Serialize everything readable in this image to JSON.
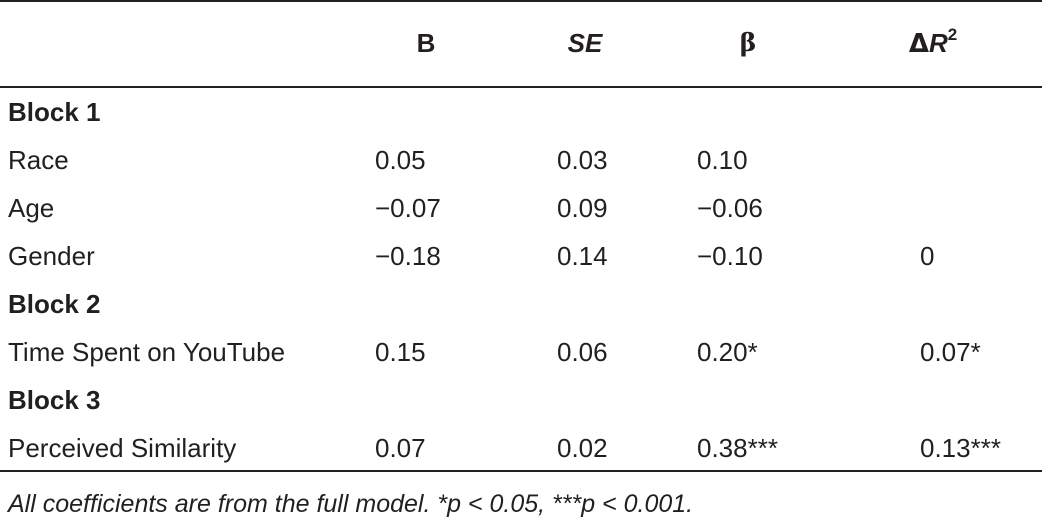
{
  "table": {
    "headers": {
      "b": "B",
      "se": "SE",
      "beta": "β",
      "delta_r2_symbol": "Δ",
      "delta_r2_var": "R",
      "delta_r2_exp": "2"
    },
    "rows": [
      {
        "type": "block",
        "label": "Block 1"
      },
      {
        "type": "data",
        "label": "Race",
        "b": "0.05",
        "se": "0.03",
        "beta": "0.10",
        "delta_r2": ""
      },
      {
        "type": "data",
        "label": "Age",
        "b": "−0.07",
        "se": "0.09",
        "beta": "−0.06",
        "delta_r2": ""
      },
      {
        "type": "data",
        "label": "Gender",
        "b": "−0.18",
        "se": "0.14",
        "beta": "−0.10",
        "delta_r2": "0"
      },
      {
        "type": "block",
        "label": "Block 2"
      },
      {
        "type": "data",
        "label": "Time Spent on YouTube",
        "b": "0.15",
        "se": "0.06",
        "beta": "0.20*",
        "delta_r2": "0.07*"
      },
      {
        "type": "block",
        "label": "Block 3"
      },
      {
        "type": "data",
        "label": "Perceived Similarity",
        "b": "0.07",
        "se": "0.02",
        "beta": "0.38***",
        "delta_r2": "0.13***"
      }
    ],
    "note": "All coefficients are from the full model. *p < 0.05, ***p < 0.001."
  }
}
